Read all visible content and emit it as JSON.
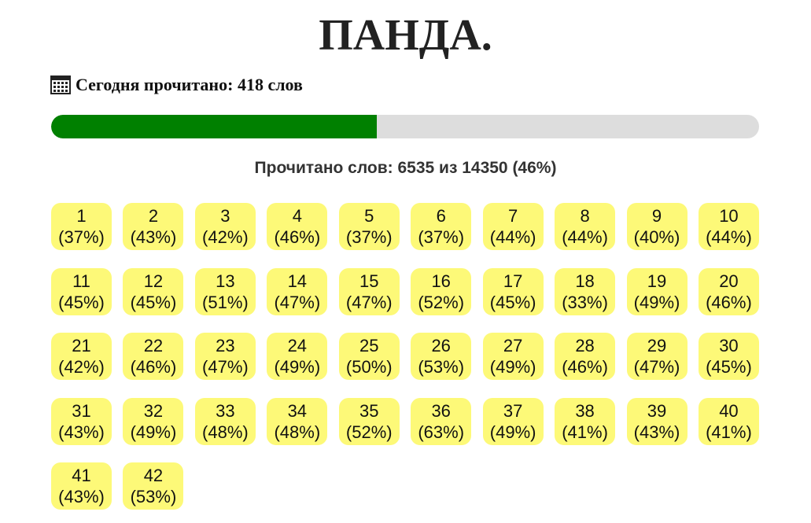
{
  "header": {
    "title": "ПАНДА."
  },
  "today": {
    "text": "Сегодня прочитано: 418 слов"
  },
  "progress": {
    "value": 46,
    "label": "Прочитано слов: 6535 из 14350 (46%)"
  },
  "chapters": [
    {
      "label": "1",
      "percent": "(37%)"
    },
    {
      "label": "2",
      "percent": "(43%)"
    },
    {
      "label": "3",
      "percent": "(42%)"
    },
    {
      "label": "4",
      "percent": "(46%)"
    },
    {
      "label": "5",
      "percent": "(37%)"
    },
    {
      "label": "6",
      "percent": "(37%)"
    },
    {
      "label": "7",
      "percent": "(44%)"
    },
    {
      "label": "8",
      "percent": "(44%)"
    },
    {
      "label": "9",
      "percent": "(40%)"
    },
    {
      "label": "10",
      "percent": "(44%)"
    },
    {
      "label": "11",
      "percent": "(45%)"
    },
    {
      "label": "12",
      "percent": "(45%)"
    },
    {
      "label": "13",
      "percent": "(51%)"
    },
    {
      "label": "14",
      "percent": "(47%)"
    },
    {
      "label": "15",
      "percent": "(47%)"
    },
    {
      "label": "16",
      "percent": "(52%)"
    },
    {
      "label": "17",
      "percent": "(45%)"
    },
    {
      "label": "18",
      "percent": "(33%)"
    },
    {
      "label": "19",
      "percent": "(49%)"
    },
    {
      "label": "20",
      "percent": "(46%)"
    },
    {
      "label": "21",
      "percent": "(42%)"
    },
    {
      "label": "22",
      "percent": "(46%)"
    },
    {
      "label": "23",
      "percent": "(47%)"
    },
    {
      "label": "24",
      "percent": "(49%)"
    },
    {
      "label": "25",
      "percent": "(50%)"
    },
    {
      "label": "26",
      "percent": "(53%)"
    },
    {
      "label": "27",
      "percent": "(49%)"
    },
    {
      "label": "28",
      "percent": "(46%)"
    },
    {
      "label": "29",
      "percent": "(47%)"
    },
    {
      "label": "30",
      "percent": "(45%)"
    },
    {
      "label": "31",
      "percent": "(43%)"
    },
    {
      "label": "32",
      "percent": "(49%)"
    },
    {
      "label": "33",
      "percent": "(48%)"
    },
    {
      "label": "34",
      "percent": "(48%)"
    },
    {
      "label": "35",
      "percent": "(52%)"
    },
    {
      "label": "36",
      "percent": "(63%)"
    },
    {
      "label": "37",
      "percent": "(49%)"
    },
    {
      "label": "38",
      "percent": "(41%)"
    },
    {
      "label": "39",
      "percent": "(43%)"
    },
    {
      "label": "40",
      "percent": "(41%)"
    },
    {
      "label": "41",
      "percent": "(43%)"
    },
    {
      "label": "42",
      "percent": "(53%)"
    }
  ]
}
